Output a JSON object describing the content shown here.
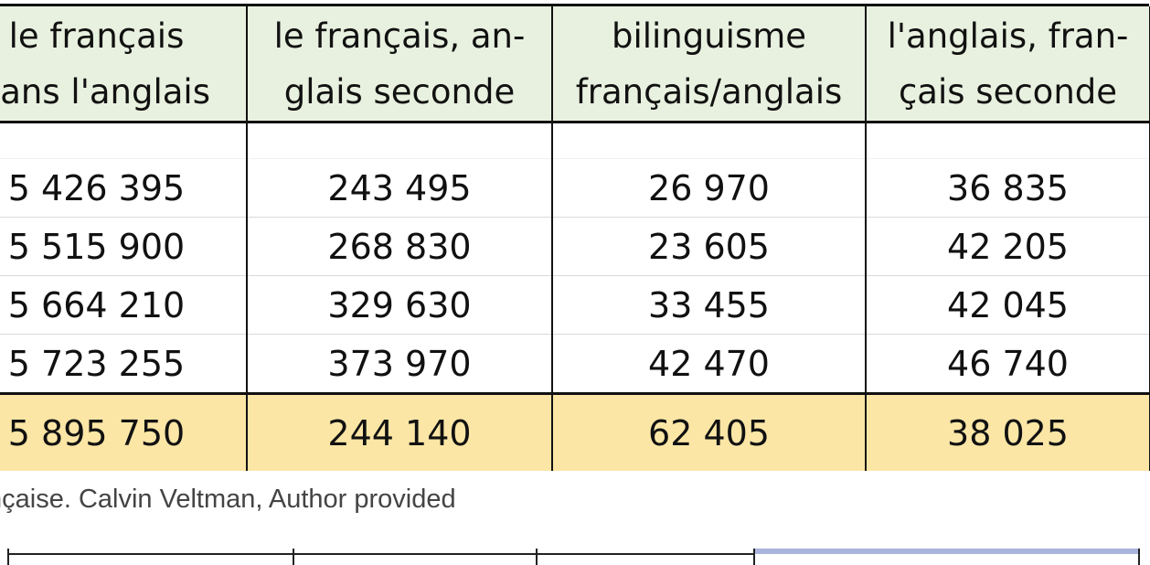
{
  "table": {
    "headers": [
      [
        "le français",
        "sans l'anglais"
      ],
      [
        "le français, an-",
        "glais seconde"
      ],
      [
        "bilinguisme",
        "français/anglais"
      ],
      [
        "l'anglais, fran-",
        "çais seconde"
      ]
    ],
    "rows": [
      [
        "5 426 395",
        "243 495",
        "26 970",
        "36 835"
      ],
      [
        "5 515 900",
        "268 830",
        "23 605",
        "42 205"
      ],
      [
        "5 664 210",
        "329 630",
        "33 455",
        "42 045"
      ],
      [
        "5 723 255",
        "373 970",
        "42 470",
        "46 740"
      ]
    ],
    "total_row": [
      "5 895 750",
      "244 140",
      "62 405",
      "38 025"
    ]
  },
  "caption": "nçaise. Calvin Veltman, Author provided",
  "colors": {
    "header_bg": "#e8f1df",
    "total_bg": "#fbe6a6",
    "active_nav": "#aab4dc"
  }
}
